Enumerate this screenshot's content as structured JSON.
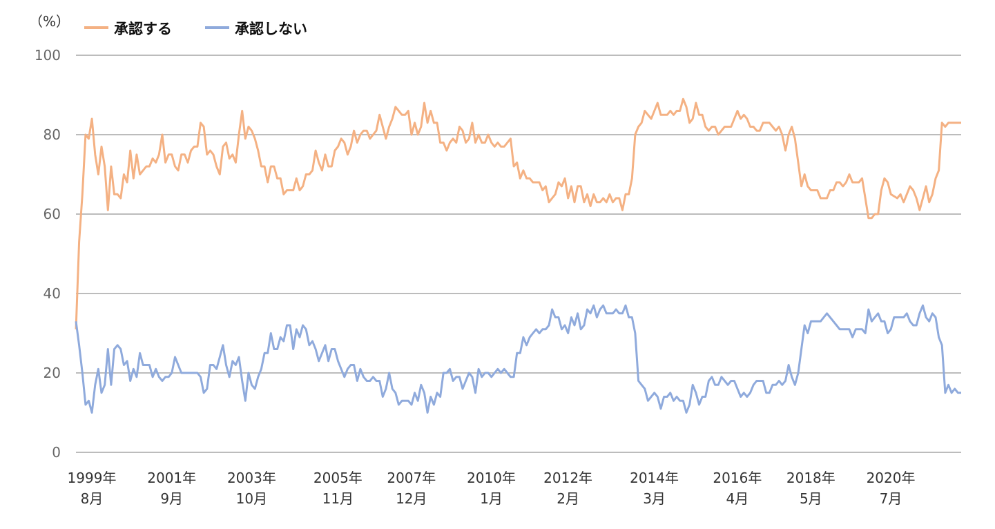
{
  "chart_data": {
    "type": "line",
    "title": "",
    "ylabel": "（%）",
    "xlabel": "",
    "ylim": [
      0,
      100
    ],
    "yticks": [
      0,
      20,
      40,
      60,
      80,
      100
    ],
    "grid": true,
    "legend_position": "top-left",
    "x_range": [
      "1999年8月",
      "2022年"
    ],
    "xtick_labels": [
      {
        "year": "1999年",
        "month": "8月",
        "index": 0
      },
      {
        "year": "2001年",
        "month": "9月",
        "index": 25
      },
      {
        "year": "2003年",
        "month": "10月",
        "index": 50
      },
      {
        "year": "2005年",
        "month": "11月",
        "index": 77
      },
      {
        "year": "2007年",
        "month": "12月",
        "index": 100
      },
      {
        "year": "2010年",
        "month": "1月",
        "index": 125
      },
      {
        "year": "2012年",
        "month": "2月",
        "index": 149
      },
      {
        "year": "2014年",
        "month": "3月",
        "index": 176
      },
      {
        "year": "2016年",
        "month": "4月",
        "index": 202
      },
      {
        "year": "2018年",
        "month": "5月",
        "index": 225
      },
      {
        "year": "2020年",
        "month": "7月",
        "index": 250
      }
    ],
    "series": [
      {
        "name": "承認する",
        "color": "#F4B183",
        "values": [
          31,
          53,
          65,
          80,
          79,
          84,
          75,
          70,
          77,
          72,
          61,
          72,
          65,
          65,
          64,
          70,
          68,
          76,
          69,
          75,
          70,
          71,
          72,
          72,
          74,
          73,
          75,
          80,
          73,
          75,
          75,
          72,
          71,
          75,
          75,
          73,
          76,
          77,
          77,
          83,
          82,
          75,
          76,
          75,
          72,
          70,
          77,
          78,
          74,
          75,
          73,
          80,
          86,
          79,
          82,
          81,
          79,
          76,
          72,
          72,
          68,
          72,
          72,
          69,
          69,
          65,
          66,
          66,
          66,
          69,
          66,
          67,
          70,
          70,
          71,
          76,
          73,
          71,
          75,
          72,
          72,
          76,
          77,
          79,
          78,
          75,
          77,
          81,
          78,
          80,
          81,
          81,
          79,
          80,
          81,
          85,
          82,
          79,
          82,
          84,
          87,
          86,
          85,
          85,
          86,
          80,
          83,
          80,
          82,
          88,
          83,
          86,
          83,
          83,
          78,
          78,
          76,
          78,
          79,
          78,
          82,
          81,
          78,
          79,
          83,
          78,
          80,
          78,
          78,
          80,
          78,
          77,
          78,
          77,
          77,
          78,
          79,
          72,
          73,
          69,
          71,
          69,
          69,
          68,
          68,
          68,
          66,
          67,
          63,
          64,
          65,
          68,
          67,
          69,
          64,
          67,
          63,
          67,
          67,
          63,
          65,
          62,
          65,
          63,
          63,
          64,
          63,
          65,
          63,
          64,
          64,
          61,
          65,
          65,
          69,
          80,
          82,
          83,
          86,
          85,
          84,
          86,
          88,
          85,
          85,
          85,
          86,
          85,
          86,
          86,
          89,
          87,
          83,
          84,
          88,
          85,
          85,
          82,
          81,
          82,
          82,
          80,
          81,
          82,
          82,
          82,
          84,
          86,
          84,
          85,
          84,
          82,
          82,
          81,
          81,
          83,
          83,
          83,
          82,
          81,
          82,
          80,
          76,
          80,
          82,
          79,
          73,
          67,
          70,
          67,
          66,
          66,
          66,
          64,
          64,
          64,
          66,
          66,
          68,
          68,
          67,
          68,
          70,
          68,
          68,
          68,
          69,
          64,
          59,
          59,
          60,
          60,
          66,
          69,
          68,
          65,
          64.5,
          64,
          65,
          63,
          65,
          67,
          66,
          64,
          61,
          64,
          67,
          63,
          65,
          69,
          71,
          83,
          82,
          83,
          83,
          83,
          83,
          83
        ]
      },
      {
        "name": "承認しない",
        "color": "#8FAADC",
        "values": [
          33,
          27,
          20,
          12,
          13,
          10,
          17,
          21,
          15,
          17,
          26,
          17,
          26,
          27,
          26,
          22,
          23,
          18,
          21,
          19,
          25,
          22,
          22,
          22,
          19,
          21,
          19,
          18,
          19,
          19,
          20,
          24,
          22,
          20,
          20,
          20,
          20,
          20,
          20,
          19,
          15,
          16,
          22,
          22,
          21,
          24,
          27,
          22,
          19,
          23,
          22,
          24,
          18,
          13,
          20,
          17,
          16,
          19,
          21,
          25,
          25,
          30,
          26,
          26,
          29,
          28,
          32,
          32,
          26,
          31,
          29,
          32,
          31,
          27,
          28,
          26,
          23,
          25,
          27,
          23,
          26,
          26,
          23,
          21,
          19,
          21,
          22,
          22,
          18,
          21,
          19,
          18,
          18,
          19,
          18,
          18,
          14,
          16,
          20,
          16,
          15,
          12,
          13,
          13,
          13,
          12,
          15,
          13,
          17,
          15,
          10,
          14,
          12,
          15,
          14,
          20,
          20,
          21,
          18,
          19,
          19,
          16,
          18,
          20,
          19,
          15,
          21,
          19,
          20,
          20,
          19,
          20,
          21,
          20,
          21,
          20,
          19,
          19,
          25,
          25,
          29,
          27,
          29,
          30,
          31,
          30,
          31,
          31,
          32,
          36,
          34,
          34,
          31,
          32,
          30,
          34,
          32,
          35,
          31,
          32,
          36,
          35,
          37,
          34,
          36,
          37,
          35,
          35,
          35,
          36,
          35,
          35,
          37,
          34,
          34,
          30,
          18,
          17,
          16,
          13,
          14,
          15,
          14,
          11,
          14,
          14,
          15,
          13,
          14,
          13,
          13,
          10,
          12,
          17,
          15,
          12,
          14,
          14,
          18,
          19,
          17,
          17,
          19,
          18,
          17,
          18,
          18,
          16,
          14,
          15,
          14,
          15,
          17,
          18,
          18,
          18,
          15,
          15,
          17,
          17,
          18,
          17,
          18,
          22,
          19,
          17,
          20,
          26,
          32,
          30,
          33,
          33,
          33,
          33,
          34,
          35,
          34,
          33,
          32,
          31,
          31,
          31,
          31,
          29,
          31,
          31,
          31,
          30,
          36,
          33,
          34,
          35,
          33,
          33,
          30,
          31,
          34,
          34,
          34,
          34,
          35,
          33,
          32,
          32,
          35,
          37,
          34,
          33,
          35,
          34,
          29,
          27,
          15,
          17,
          15,
          16,
          15,
          15
        ]
      }
    ]
  }
}
